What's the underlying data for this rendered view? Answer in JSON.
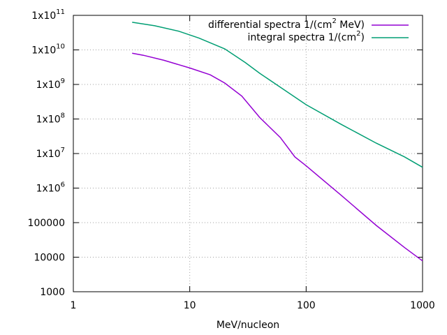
{
  "chart_data": {
    "type": "line",
    "xlabel": "MeV/nucleon",
    "log_x": true,
    "log_y": true,
    "grid": true,
    "legend": "top-right",
    "xlim": [
      1,
      1000
    ],
    "ylim": [
      1000,
      100000000000
    ],
    "xticks": [
      1,
      10,
      100,
      1000
    ],
    "yticks": [
      {
        "value": 100000000000,
        "label": "1x10^{11}"
      },
      {
        "value": 10000000000,
        "label": "1x10^{10}"
      },
      {
        "value": 1000000000,
        "label": "1x10^{9}"
      },
      {
        "value": 100000000,
        "label": "1x10^{8}"
      },
      {
        "value": 10000000,
        "label": "1x10^{7}"
      },
      {
        "value": 1000000,
        "label": "1x10^{6}"
      },
      100000,
      10000,
      1000
    ],
    "series": [
      {
        "name": "differential spectra 1/(cm^{2} MeV)",
        "color": "#9400d3",
        "x": [
          3.2,
          4,
          6,
          10,
          15,
          20,
          28,
          40,
          60,
          80,
          100,
          200,
          400,
          700,
          1000
        ],
        "values": [
          8000000000,
          7000000000,
          5000000000,
          3000000000,
          1900000000,
          1100000000,
          460000000,
          110000000,
          29000000,
          8000000,
          4400000,
          620000,
          83000,
          19000,
          7800
        ]
      },
      {
        "name": "integral spectra 1/(cm^{2})",
        "color": "#009e73",
        "x": [
          3.2,
          5,
          8,
          12,
          20,
          30,
          40,
          60,
          100,
          200,
          400,
          700,
          1000
        ],
        "values": [
          63000000000,
          50000000000,
          35000000000,
          22000000000,
          10700000000,
          4300000000,
          2100000000,
          830000000,
          260000000,
          70000000,
          20000000,
          8000000,
          4000000
        ]
      }
    ]
  }
}
